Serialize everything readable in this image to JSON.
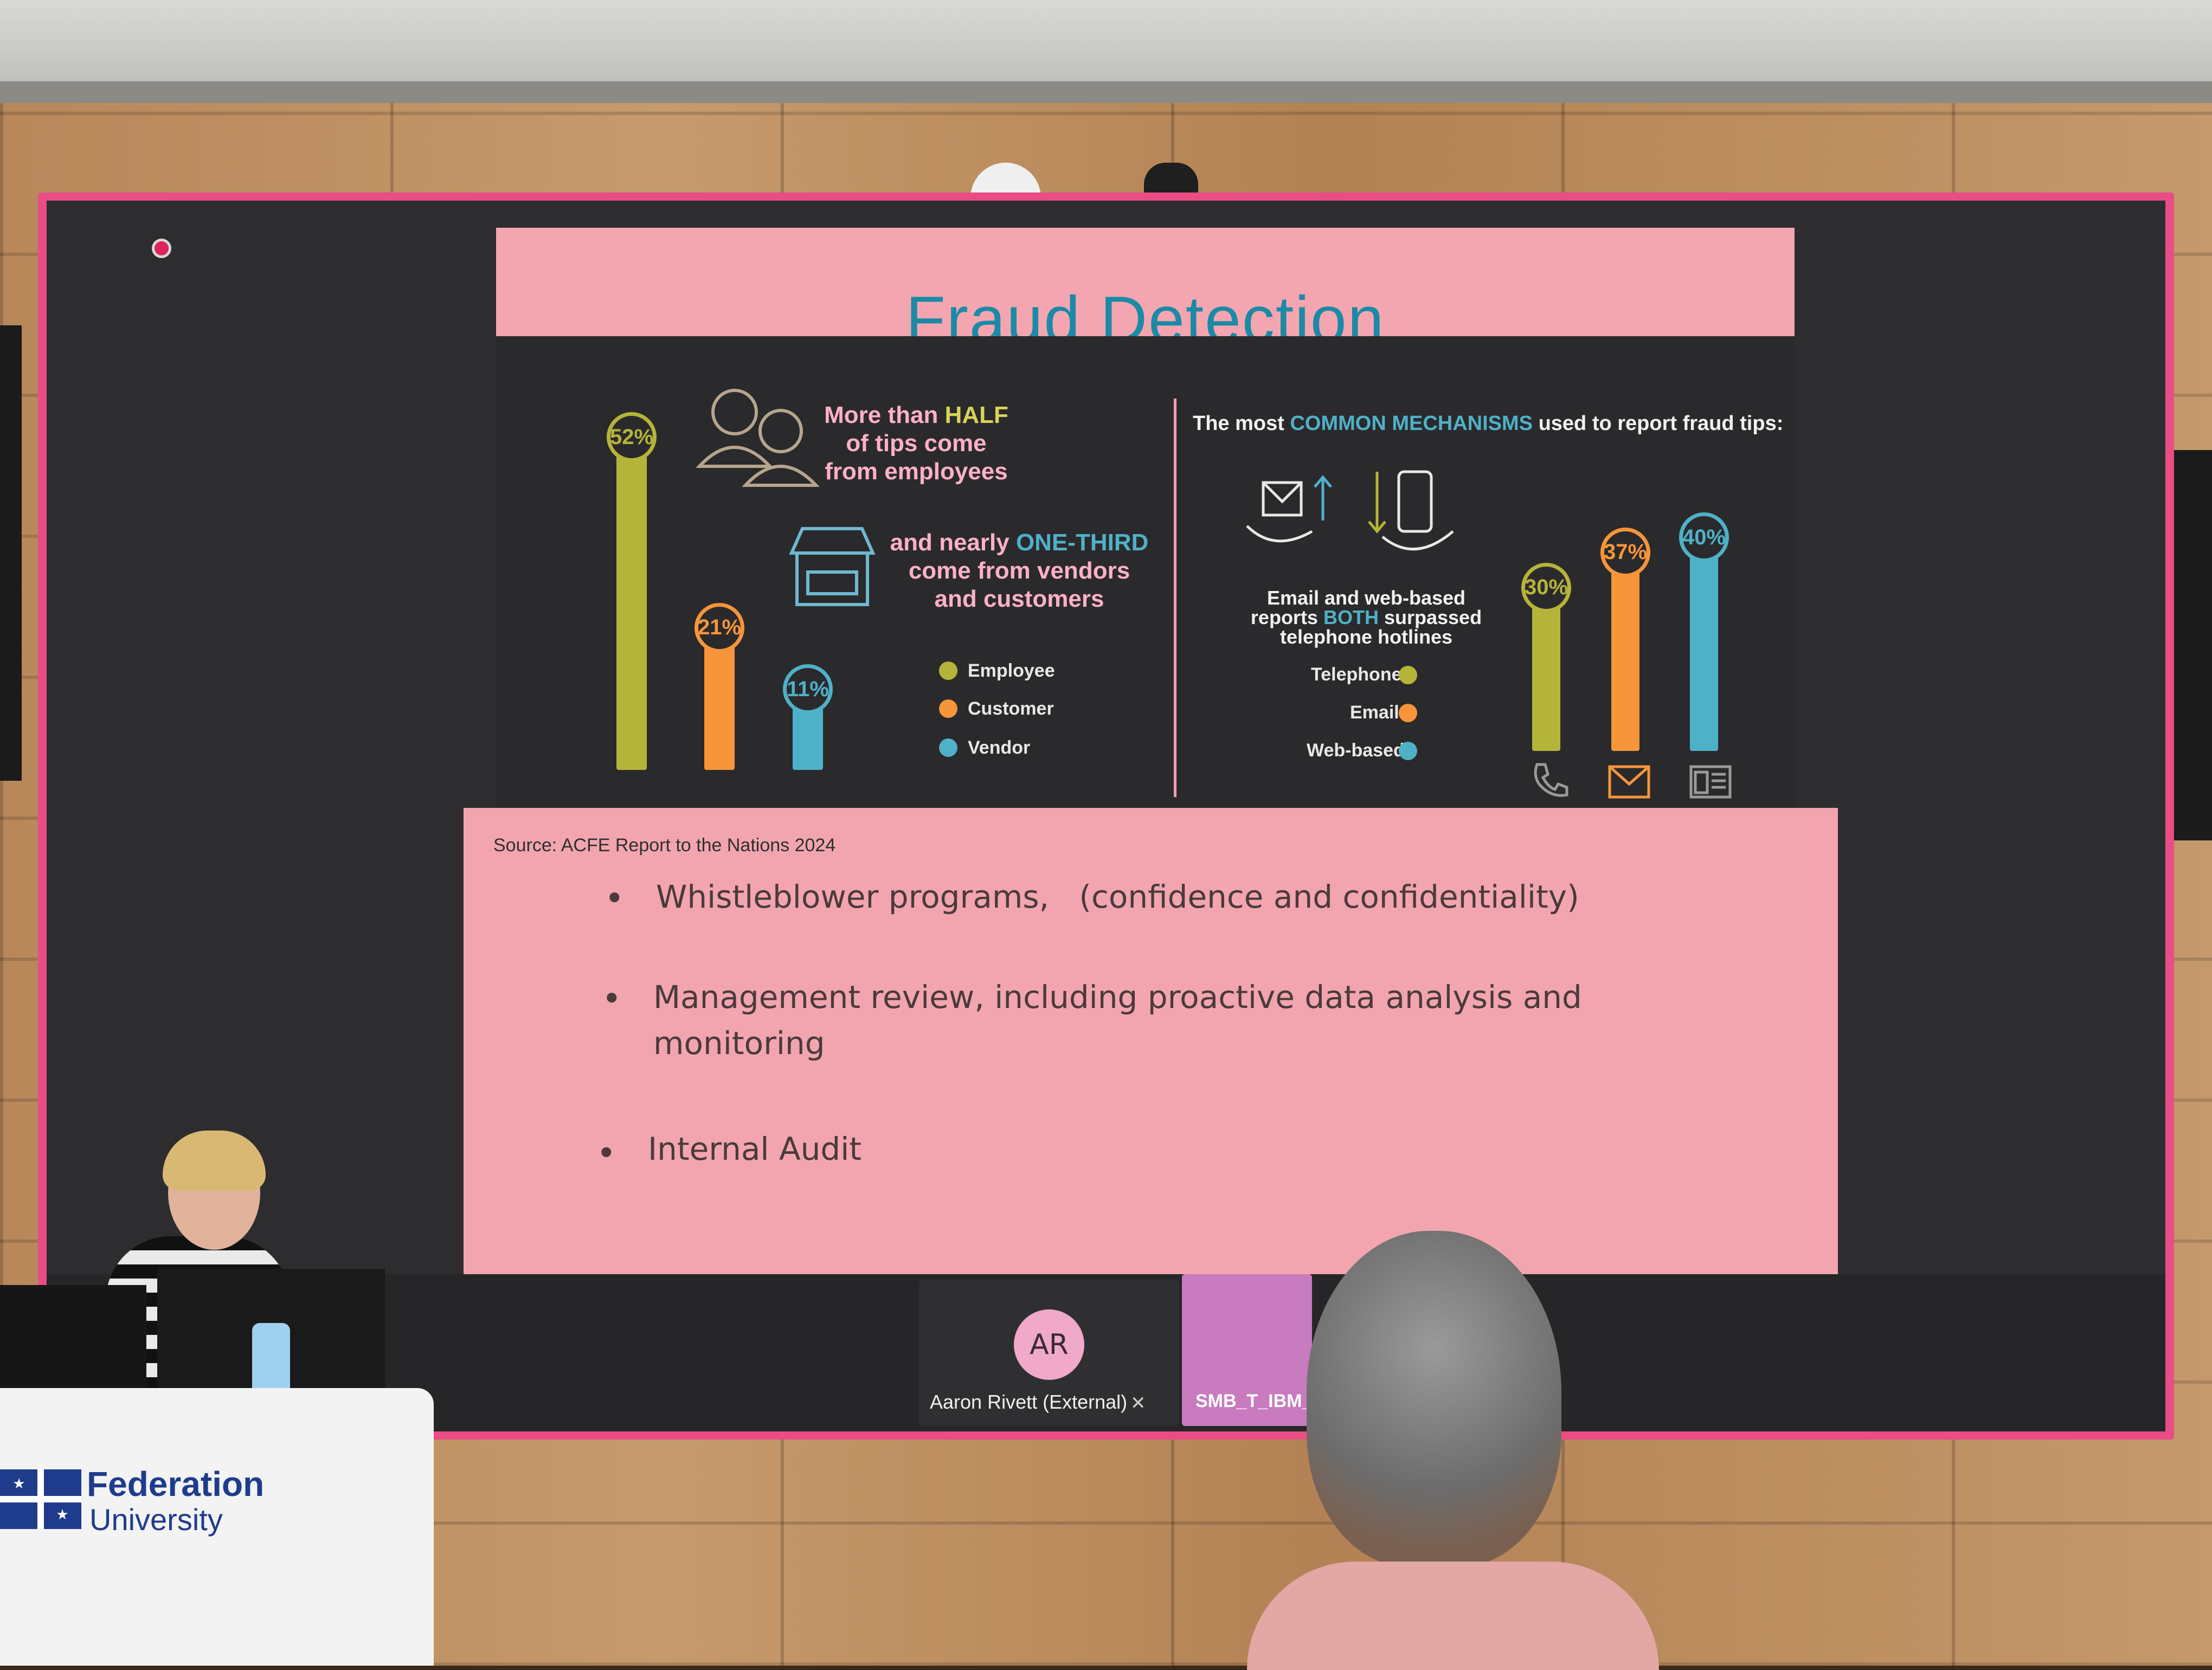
{
  "slide": {
    "title": "Fraud Detection",
    "left_panel": {
      "heading_line1": "More than ",
      "heading_half": "HALF",
      "heading_line2": "of tips come",
      "heading_line3": "from employees",
      "sub_line1": "and nearly ",
      "sub_third": "ONE-THIRD",
      "sub_line2": "come from vendors",
      "sub_line3": "and customers",
      "legend": [
        "Employee",
        "Customer",
        "Vendor"
      ]
    },
    "right_panel": {
      "heading_pre": "The most ",
      "heading_highlight": "COMMON MECHANISMS",
      "heading_post": " used to report fraud tips:",
      "note_line1": "Email and web-based",
      "note_line2a": "reports ",
      "note_both": "BOTH",
      "note_line2b": " surpassed",
      "note_line3": "telephone hotlines",
      "legend": [
        "Telephone",
        "Email",
        "Web-based"
      ]
    },
    "source": "Source: ACFE Report to the Nations 2024",
    "bullets": [
      "Whistleblower programs,   (confidence and confidentiality)",
      "Management review, including proactive data analysis and",
      "monitoring",
      "Internal Audit"
    ],
    "bullet_symbol": "•"
  },
  "chart_data": [
    {
      "type": "bar",
      "categories": [
        "Employee",
        "Customer",
        "Vendor"
      ],
      "values": [
        52,
        21,
        11
      ],
      "labels": [
        "52%",
        "21%",
        "11%"
      ],
      "colors": [
        "#b5b43a",
        "#f7953a",
        "#4fb1c8"
      ],
      "ylim": [
        0,
        52
      ]
    },
    {
      "type": "bar",
      "categories": [
        "Telephone",
        "Email",
        "Web-based"
      ],
      "values": [
        30,
        37,
        40
      ],
      "labels": [
        "30%",
        "37%",
        "40%"
      ],
      "colors": [
        "#b5b43a",
        "#f7953a",
        "#4fb1c8"
      ],
      "ylim": [
        0,
        40
      ]
    }
  ],
  "meeting": {
    "avatar_initials": "AR",
    "participant_name": "Aaron Rivett (External)",
    "screen_share_name": "SMB_T_IBM_"
  },
  "podium": {
    "brand_line1": "Federation",
    "brand_line2": "University"
  },
  "colors": {
    "slide_pink": "#f2a5af",
    "title_teal": "#1b8aa6",
    "screen_border": "#e84d83",
    "highlight_yellow": "#d9d45a",
    "highlight_blue": "#4fb1c8"
  }
}
